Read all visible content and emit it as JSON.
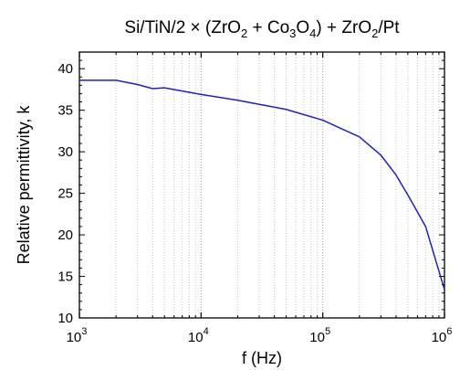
{
  "chart_data": {
    "type": "line",
    "title": "Si/TiN/2 × (ZrO₂ + Co₃O₄) + ZrO₂/Pt",
    "title_parts": [
      {
        "text": "Si/TiN/2 × (ZrO",
        "sub": false
      },
      {
        "text": "2",
        "sub": true
      },
      {
        "text": " + Co",
        "sub": false
      },
      {
        "text": "3",
        "sub": true
      },
      {
        "text": "O",
        "sub": false
      },
      {
        "text": "4",
        "sub": true
      },
      {
        "text": ") + ZrO",
        "sub": false
      },
      {
        "text": "2",
        "sub": true
      },
      {
        "text": "/Pt",
        "sub": false
      }
    ],
    "xlabel": "f (Hz)",
    "ylabel": "Relative permittivity, k",
    "x_scale": "log",
    "xlim": [
      1000,
      1000000
    ],
    "ylim": [
      10,
      42
    ],
    "x_ticks": [
      {
        "value": 1000,
        "base": "10",
        "exp": "3"
      },
      {
        "value": 10000,
        "base": "10",
        "exp": "4"
      },
      {
        "value": 100000,
        "base": "10",
        "exp": "5"
      },
      {
        "value": 1000000,
        "base": "10",
        "exp": "6"
      }
    ],
    "y_ticks": [
      10,
      15,
      20,
      25,
      30,
      35,
      40
    ],
    "grid": "vertical minor and major dotted",
    "line_color": "#1f1fcc",
    "series": [
      {
        "x": [
          1000,
          2000,
          3000,
          4000,
          5000,
          10000,
          20000,
          50000,
          100000,
          200000,
          300000,
          400000,
          500000,
          700000,
          1000000
        ],
        "y": [
          38.6,
          38.6,
          38.1,
          37.6,
          37.7,
          36.9,
          36.2,
          35.1,
          33.8,
          31.8,
          29.6,
          27.2,
          24.8,
          21.0,
          13.4
        ]
      }
    ]
  }
}
